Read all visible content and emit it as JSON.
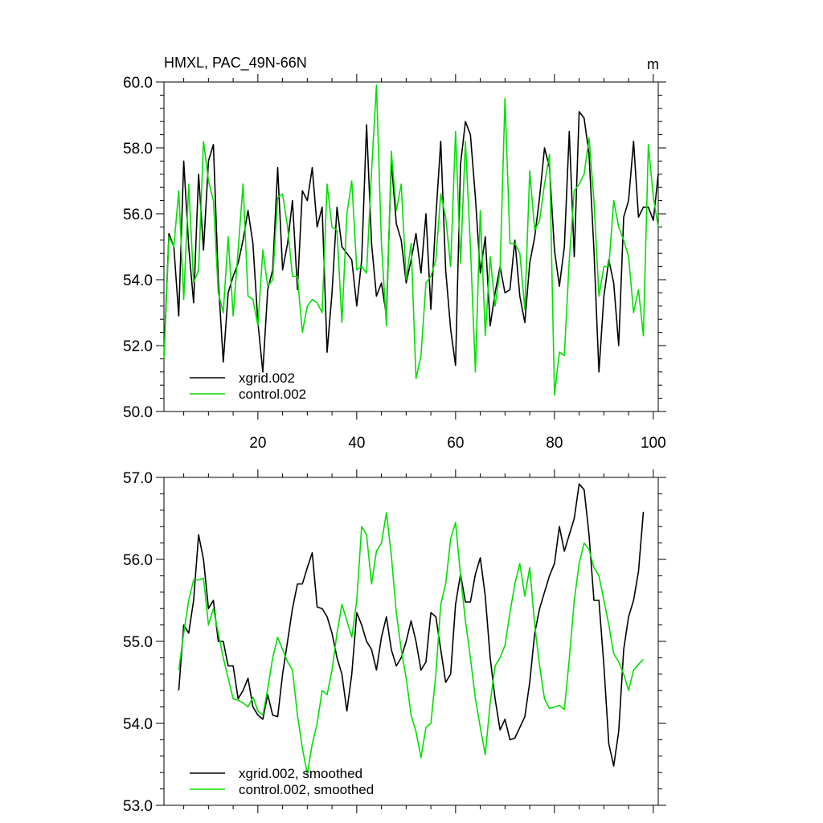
{
  "chart_data": [
    {
      "type": "line",
      "title": "HMXL, PAC_49N-66N",
      "units": "m",
      "ylim": [
        50.0,
        60.0
      ],
      "xlim": [
        1,
        101
      ],
      "yticks": [
        "50.0",
        "52.0",
        "54.0",
        "56.0",
        "58.0",
        "60.0"
      ],
      "xticks": [
        "20",
        "40",
        "60",
        "80",
        "100"
      ],
      "legend_position": "bottom-left",
      "series": [
        {
          "name": "xgrid.002",
          "color": "#000000",
          "x_start": 1,
          "values": [
            51.7,
            55.4,
            55.0,
            52.9,
            57.6,
            55.0,
            53.3,
            57.2,
            54.9,
            57.6,
            58.1,
            54.0,
            51.5,
            53.6,
            54.1,
            54.5,
            55.2,
            56.1,
            55.1,
            52.7,
            51.2,
            53.7,
            54.3,
            57.4,
            54.3,
            55.1,
            56.4,
            53.7,
            56.7,
            56.4,
            57.4,
            55.6,
            56.2,
            51.8,
            53.6,
            56.2,
            55.0,
            54.8,
            54.6,
            53.2,
            54.6,
            58.7,
            55.1,
            53.5,
            53.9,
            52.9,
            57.6,
            55.7,
            55.2,
            53.9,
            54.6,
            55.4,
            54.2,
            56.0,
            53.1,
            55.9,
            58.2,
            54.3,
            52.5,
            51.4,
            57.5,
            58.8,
            58.4,
            56.5,
            54.2,
            55.3,
            52.6,
            53.6,
            54.4,
            53.6,
            53.7,
            55.2,
            53.5,
            52.7,
            54.5,
            55.3,
            56.5,
            58.0,
            57.4,
            54.9,
            53.8,
            55.0,
            58.5,
            54.7,
            59.1,
            58.9,
            57.8,
            54.9,
            51.2,
            53.5,
            54.6,
            53.9,
            52.0,
            55.9,
            56.4,
            58.2,
            55.9,
            56.2,
            56.2,
            55.8,
            57.2
          ]
        },
        {
          "name": "control.002",
          "color": "#00e000",
          "x_start": 1,
          "values": [
            51.6,
            55.3,
            55.0,
            56.7,
            53.4,
            56.9,
            53.9,
            54.3,
            58.2,
            57.0,
            56.4,
            53.6,
            53.0,
            55.3,
            52.9,
            54.9,
            56.9,
            53.5,
            53.4,
            52.6,
            54.9,
            53.8,
            54.0,
            56.5,
            56.6,
            55.6,
            54.1,
            54.1,
            52.4,
            53.2,
            53.4,
            53.3,
            53.0,
            56.9,
            55.6,
            55.5,
            52.7,
            56.0,
            57.0,
            54.3,
            54.4,
            54.2,
            57.3,
            59.9,
            55.1,
            52.6,
            57.9,
            56.1,
            56.9,
            54.0,
            55.1,
            51.0,
            51.7,
            53.9,
            54.1,
            54.6,
            56.6,
            55.9,
            54.4,
            58.5,
            54.5,
            58.2,
            55.0,
            51.2,
            56.1,
            52.3,
            54.7,
            53.2,
            54.3,
            59.5,
            55.1,
            55.1,
            54.8,
            53.1,
            57.3,
            55.5,
            55.8,
            56.9,
            57.8,
            50.5,
            51.8,
            51.7,
            54.6,
            56.7,
            56.9,
            57.2,
            58.3,
            56.4,
            53.5,
            54.4,
            54.4,
            56.4,
            55.6,
            55.2,
            54.7,
            53.0,
            53.7,
            52.3,
            58.1,
            56.5,
            55.6
          ]
        }
      ]
    },
    {
      "type": "line",
      "title": "",
      "ylim": [
        53.0,
        57.0
      ],
      "xlim": [
        1,
        101
      ],
      "yticks": [
        "53.0",
        "54.0",
        "55.0",
        "56.0",
        "57.0"
      ],
      "legend_position": "bottom-left",
      "series": [
        {
          "name": "xgrid.002, smoothed",
          "color": "#000000",
          "x_start": 4,
          "values": [
            54.4,
            55.2,
            55.1,
            55.5,
            56.3,
            56.0,
            55.4,
            55.5,
            55.0,
            55.0,
            54.7,
            54.7,
            54.3,
            54.4,
            54.55,
            54.2,
            54.1,
            54.05,
            54.35,
            54.1,
            54.08,
            54.6,
            55.0,
            55.4,
            55.7,
            55.7,
            55.9,
            56.08,
            55.42,
            55.4,
            55.3,
            55.1,
            54.8,
            54.6,
            54.15,
            54.6,
            55.35,
            55.2,
            55.0,
            54.9,
            54.65,
            55.05,
            55.3,
            54.9,
            54.7,
            54.8,
            55.0,
            55.25,
            55.0,
            54.65,
            54.75,
            55.35,
            55.3,
            54.9,
            54.5,
            54.6,
            55.45,
            55.82,
            55.48,
            55.48,
            55.82,
            56.02,
            55.55,
            54.8,
            54.3,
            53.92,
            54.05,
            53.8,
            53.82,
            53.95,
            54.08,
            54.5,
            55.1,
            55.4,
            55.6,
            55.8,
            55.95,
            56.4,
            56.1,
            56.3,
            56.5,
            56.92,
            56.85,
            56.3,
            55.5,
            55.5,
            54.7,
            53.75,
            53.48,
            53.9,
            54.9,
            55.3,
            55.5,
            55.85,
            56.58
          ]
        },
        {
          "name": "control.002, smoothed",
          "color": "#00e000",
          "x_start": 4,
          "values": [
            54.65,
            55.1,
            55.5,
            55.75,
            55.75,
            55.77,
            55.2,
            55.4,
            55.1,
            54.8,
            54.55,
            54.3,
            54.28,
            54.25,
            54.2,
            54.32,
            54.15,
            54.1,
            54.42,
            54.8,
            55.05,
            54.9,
            54.75,
            54.65,
            54.1,
            53.7,
            53.38,
            53.75,
            54.0,
            54.4,
            54.35,
            54.65,
            55.1,
            55.45,
            55.25,
            55.05,
            55.5,
            56.4,
            56.3,
            55.7,
            56.1,
            56.2,
            56.57,
            56.05,
            55.35,
            54.9,
            54.55,
            54.1,
            53.9,
            53.58,
            53.95,
            54.0,
            54.6,
            55.45,
            55.7,
            56.25,
            56.45,
            55.8,
            55.25,
            54.8,
            54.3,
            53.95,
            53.62,
            54.25,
            54.7,
            54.8,
            54.95,
            55.35,
            55.7,
            55.95,
            55.55,
            55.9,
            55.2,
            54.7,
            54.3,
            54.18,
            54.2,
            54.22,
            54.17,
            54.78,
            55.5,
            55.95,
            56.2,
            56.12,
            55.9,
            55.8,
            55.5,
            55.2,
            54.85,
            54.75,
            54.6,
            54.4,
            54.65,
            54.72,
            54.78
          ]
        }
      ]
    }
  ]
}
